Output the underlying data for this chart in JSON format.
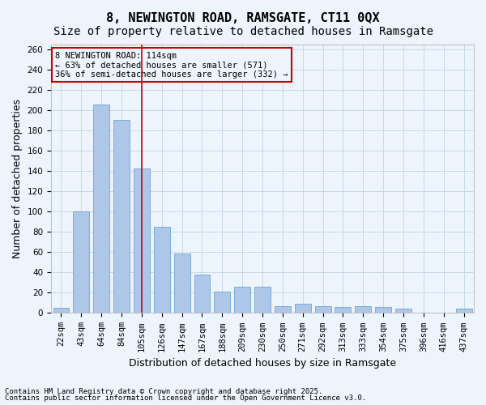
{
  "title": "8, NEWINGTON ROAD, RAMSGATE, CT11 0QX",
  "subtitle": "Size of property relative to detached houses in Ramsgate",
  "xlabel": "Distribution of detached houses by size in Ramsgate",
  "ylabel": "Number of detached properties",
  "categories": [
    "22sqm",
    "43sqm",
    "64sqm",
    "84sqm",
    "105sqm",
    "126sqm",
    "147sqm",
    "167sqm",
    "188sqm",
    "209sqm",
    "230sqm",
    "250sqm",
    "271sqm",
    "292sqm",
    "313sqm",
    "333sqm",
    "354sqm",
    "375sqm",
    "396sqm",
    "416sqm",
    "437sqm"
  ],
  "values": [
    5,
    100,
    206,
    191,
    143,
    85,
    59,
    38,
    21,
    26,
    26,
    7,
    9,
    7,
    6,
    7,
    6,
    4,
    0,
    0,
    4
  ],
  "bar_color": "#aec6e8",
  "bar_edge_color": "#5b9bd5",
  "grid_color": "#c8d8e8",
  "background_color": "#eef4fb",
  "vline_x_index": 4,
  "vline_color": "#cc0000",
  "annotation_text": "8 NEWINGTON ROAD: 114sqm\n← 63% of detached houses are smaller (571)\n36% of semi-detached houses are larger (332) →",
  "annotation_box_color": "#cc0000",
  "ylim": [
    0,
    265
  ],
  "yticks": [
    0,
    20,
    40,
    60,
    80,
    100,
    120,
    140,
    160,
    180,
    200,
    220,
    240,
    260
  ],
  "footnote1": "Contains HM Land Registry data © Crown copyright and database right 2025.",
  "footnote2": "Contains public sector information licensed under the Open Government Licence v3.0.",
  "title_fontsize": 11,
  "subtitle_fontsize": 10,
  "tick_fontsize": 7.5,
  "ylabel_fontsize": 9,
  "xlabel_fontsize": 9
}
